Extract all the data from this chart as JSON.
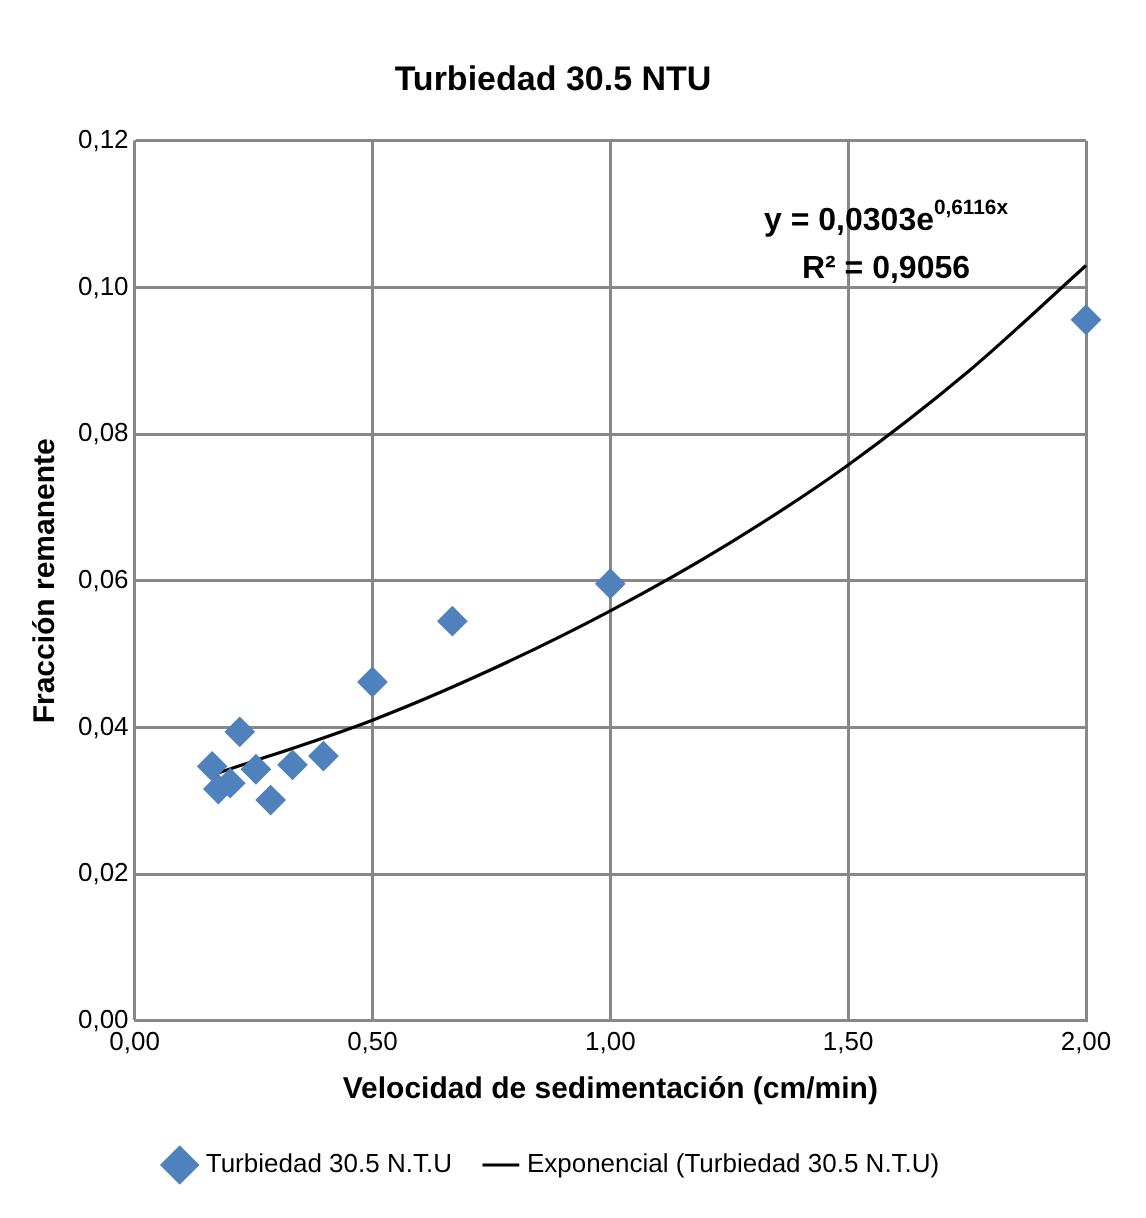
{
  "chart_data": {
    "type": "scatter",
    "title": "Turbiedad 30.5 NTU",
    "xlabel": "Velocidad de sedimentación (cm/min)",
    "ylabel": "Fracción remanente",
    "xlim": [
      0,
      2
    ],
    "xticks": [
      {
        "value": 0,
        "label": "0,00"
      },
      {
        "value": 0.5,
        "label": "0,50"
      },
      {
        "value": 1,
        "label": "1,00"
      },
      {
        "value": 1.5,
        "label": "1,50"
      },
      {
        "value": 2,
        "label": "2,00"
      }
    ],
    "ylim": [
      0,
      0.12
    ],
    "yticks": [
      {
        "value": 0,
        "label": "0,00"
      },
      {
        "value": 0.02,
        "label": "0,02"
      },
      {
        "value": 0.04,
        "label": "0,04"
      },
      {
        "value": 0.06,
        "label": "0,06"
      },
      {
        "value": 0.08,
        "label": "0,08"
      },
      {
        "value": 0.1,
        "label": "0,10"
      },
      {
        "value": 0.12,
        "label": "0,12"
      }
    ],
    "grid": true,
    "legend": "bottom",
    "series": [
      {
        "name": "Turbiedad 30.5 N.T.U",
        "color": "#4f81bd",
        "marker": "diamond",
        "x": [
          0.163,
          0.176,
          0.201,
          0.221,
          0.255,
          0.286,
          0.332,
          0.397,
          0.5,
          0.668,
          1.0,
          2.0
        ],
        "values": [
          0.0347,
          0.0316,
          0.0324,
          0.0394,
          0.0343,
          0.0301,
          0.0349,
          0.0361,
          0.0462,
          0.0545,
          0.0596,
          0.0956
        ]
      },
      {
        "name": "Exponencial (Turbiedad 30.5 N.T.U)",
        "type": "line",
        "color": "#000000",
        "marker": "none",
        "x": [
          0.167,
          0.5,
          0.75,
          1.0,
          1.25,
          1.5,
          1.75,
          2.0
        ],
        "values": [
          0.0336,
          0.041,
          0.0479,
          0.0559,
          0.0651,
          0.0758,
          0.0884,
          0.103
        ]
      }
    ],
    "annotations": [
      "y = 0,0303e$^{0,6116x}$",
      "R² = 0,9056"
    ]
  }
}
